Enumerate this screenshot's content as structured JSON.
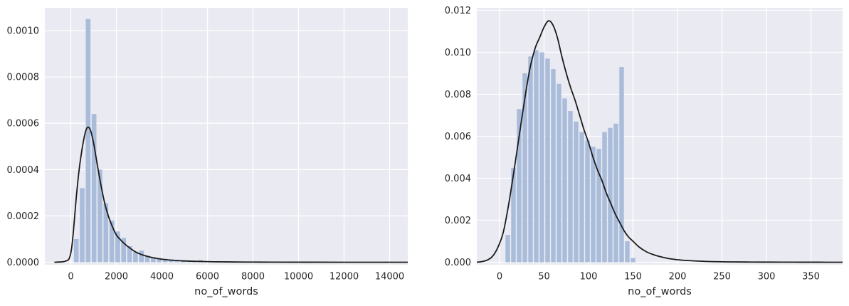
{
  "figure": {
    "background_color": "#ffffff",
    "panel_color": "#eaeaf2",
    "grid_color": "#ffffff",
    "bar_color": "#a9bcda",
    "kde_color": "#1b1b1b",
    "text_color": "#262626"
  },
  "chart_data": [
    {
      "type": "histogram+kde",
      "title": "",
      "xlabel": "no_of_words",
      "ylabel": "",
      "grid": true,
      "legend": false,
      "xlim": [
        -1172,
        14797
      ],
      "ylim": [
        0,
        0.0011
      ],
      "x_ticks": [
        0,
        2000,
        4000,
        6000,
        8000,
        10000,
        12000,
        14000
      ],
      "x_tick_labels": [
        "0",
        "2000",
        "4000",
        "6000",
        "8000",
        "10000",
        "12000",
        "14000"
      ],
      "y_ticks": [
        0,
        0.0002,
        0.0004,
        0.0006,
        0.0008,
        0.001
      ],
      "y_tick_labels": [
        "0.0000",
        "0.0002",
        "0.0004",
        "0.0006",
        "0.0008",
        "0.0010"
      ],
      "bins": {
        "start": 110,
        "bin_width": 260,
        "heights": [
          0.0001,
          0.00032,
          0.00105,
          0.00064,
          0.0004,
          0.000255,
          0.00018,
          0.000133,
          0.000105,
          7e-05,
          4.4e-05,
          5e-05,
          2.8e-05,
          2.2e-05,
          1.8e-05,
          1.5e-05,
          1.2e-05,
          1e-05,
          9e-06,
          7e-06,
          6e-06,
          1e-05
        ]
      },
      "kde": {
        "x": [
          -700,
          -500,
          -350,
          -250,
          -150,
          -75,
          0,
          60,
          120,
          180,
          240,
          300,
          360,
          420,
          480,
          540,
          600,
          650,
          700,
          750,
          800,
          850,
          900,
          1000,
          1100,
          1200,
          1300,
          1400,
          1500,
          1600,
          1700,
          1800,
          1900,
          2000,
          2150,
          2300,
          2450,
          2600,
          2800,
          3000,
          3200,
          3500,
          3800,
          4100,
          4500,
          4900,
          5300,
          5800,
          6300,
          7000,
          8000,
          9000,
          10500,
          12000,
          13500,
          14790
        ],
        "y": [
          0,
          1e-06,
          2e-06,
          4e-06,
          8e-06,
          1.5e-05,
          4e-05,
          8e-05,
          0.00014,
          0.00021,
          0.00028,
          0.00034,
          0.000395,
          0.00044,
          0.00048,
          0.000515,
          0.000545,
          0.000565,
          0.000578,
          0.000583,
          0.000581,
          0.000573,
          0.000558,
          0.000515,
          0.000458,
          0.0004,
          0.000345,
          0.000295,
          0.00025,
          0.000215,
          0.000185,
          0.00016,
          0.000137,
          0.000118,
          0.0001,
          8.5e-05,
          7.2e-05,
          6.1e-05,
          4.7e-05,
          3.7e-05,
          3e-05,
          2.2e-05,
          1.6e-05,
          1.2e-05,
          8.5e-06,
          6e-06,
          4.5e-06,
          3e-06,
          2e-06,
          1.3e-06,
          7e-07,
          4e-07,
          2e-07,
          1e-07,
          0,
          0
        ]
      }
    },
    {
      "type": "histogram+kde",
      "title": "",
      "xlabel": "no_of_words",
      "ylabel": "",
      "grid": true,
      "legend": false,
      "xlim": [
        -25.6,
        385.6
      ],
      "ylim": [
        0,
        0.0121
      ],
      "x_ticks": [
        0,
        50,
        100,
        150,
        200,
        250,
        300,
        350
      ],
      "x_tick_labels": [
        "0",
        "50",
        "100",
        "150",
        "200",
        "250",
        "300",
        "350"
      ],
      "y_ticks": [
        0,
        0.002,
        0.004,
        0.006,
        0.008,
        0.01,
        0.012
      ],
      "y_tick_labels": [
        "0.000",
        "0.002",
        "0.004",
        "0.006",
        "0.008",
        "0.010",
        "0.012"
      ],
      "bins": {
        "start": 6,
        "bin_width": 6.4,
        "heights": [
          0.0013,
          0.0045,
          0.0073,
          0.009,
          0.0098,
          0.0101,
          0.01,
          0.0097,
          0.0092,
          0.0085,
          0.0078,
          0.0072,
          0.0067,
          0.0062,
          0.0058,
          0.0055,
          0.0054,
          0.0062,
          0.0064,
          0.0066,
          0.0093,
          0.001,
          0.0002
        ]
      },
      "kde": {
        "x": [
          -26,
          -20,
          -14,
          -8,
          -2,
          4,
          10,
          16,
          22,
          28,
          34,
          40,
          45,
          50,
          55,
          60,
          65,
          70,
          75,
          80,
          85,
          90,
          95,
          100,
          105,
          110,
          115,
          120,
          125,
          130,
          135,
          140,
          145,
          150,
          157,
          165,
          173,
          182,
          191,
          200,
          212,
          225,
          240,
          258,
          278,
          300,
          330,
          360,
          386
        ],
        "y": [
          0,
          3e-05,
          0.0001,
          0.00028,
          0.0007,
          0.0014,
          0.0027,
          0.0043,
          0.006,
          0.0077,
          0.0092,
          0.0102,
          0.0107,
          0.0112,
          0.0115,
          0.0113,
          0.0107,
          0.0098,
          0.009,
          0.0083,
          0.0077,
          0.007,
          0.0063,
          0.0057,
          0.005,
          0.0044,
          0.0039,
          0.0033,
          0.0028,
          0.0023,
          0.0019,
          0.0015,
          0.0012,
          0.001,
          0.00072,
          0.0005,
          0.00036,
          0.00025,
          0.00017,
          0.00012,
          8e-05,
          5e-05,
          3e-05,
          1.8e-05,
          1e-05,
          6e-06,
          3e-06,
          1.5e-06,
          1e-06
        ]
      }
    }
  ]
}
